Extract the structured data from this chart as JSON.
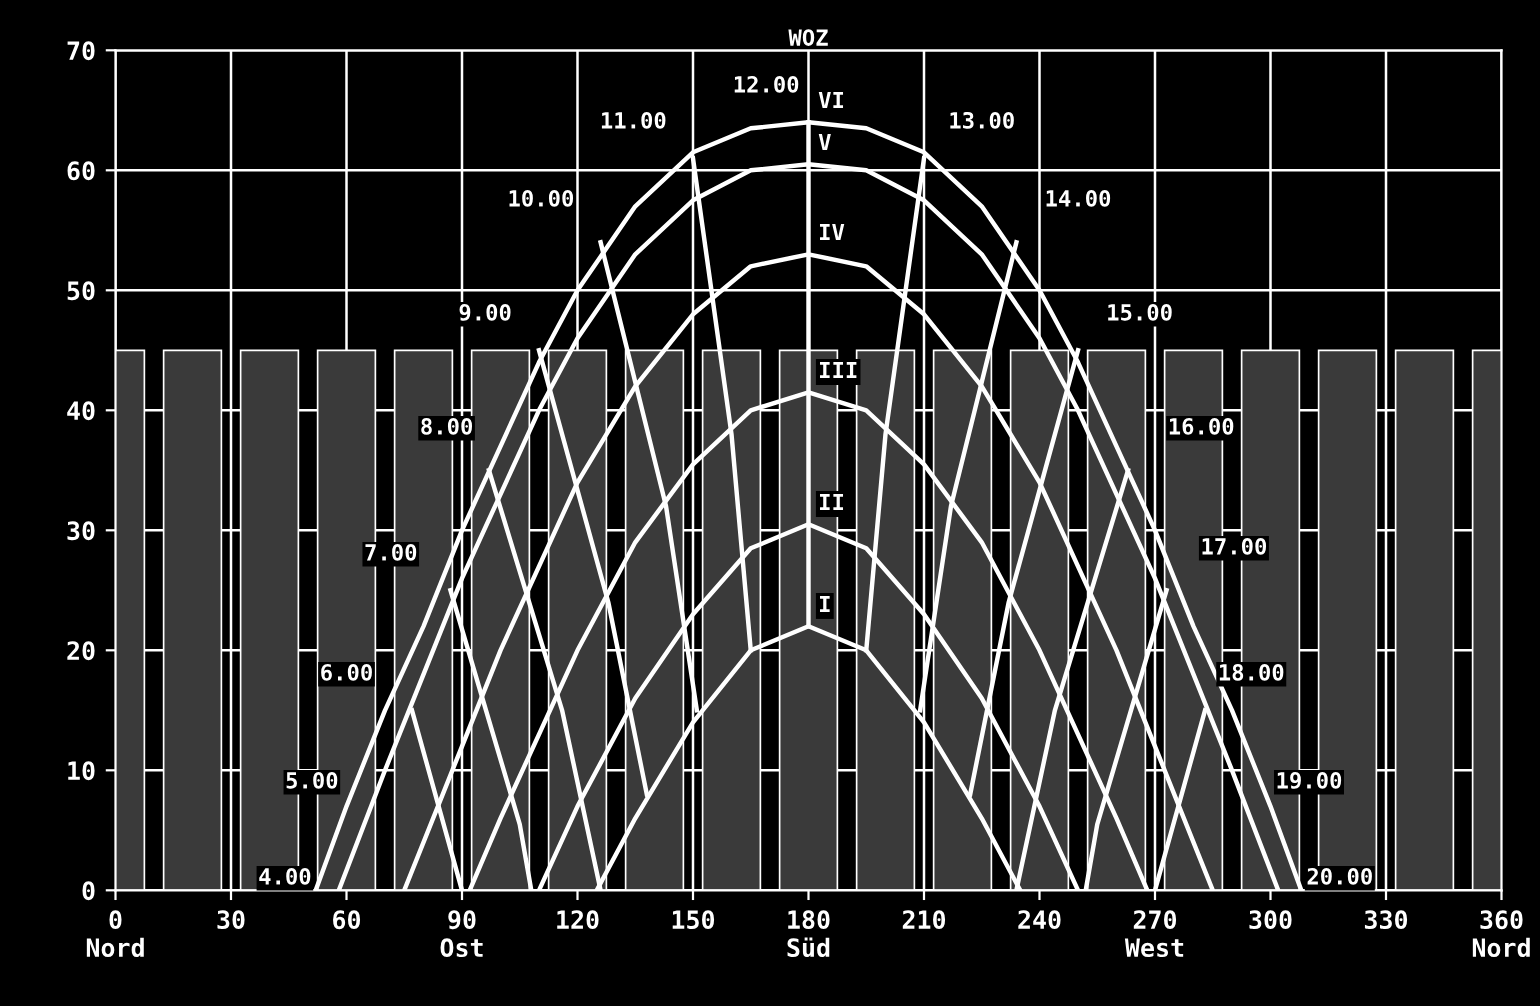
{
  "chart_data": {
    "type": "line",
    "title": "WOZ",
    "xlim": [
      0,
      360
    ],
    "ylim": [
      0,
      70
    ],
    "xticks": [
      {
        "value": 0,
        "label": "0\nNord"
      },
      30,
      60,
      {
        "value": 90,
        "label": "90\nOst"
      },
      120,
      150,
      {
        "value": 180,
        "label": "180\nSüd"
      },
      210,
      240,
      {
        "value": 270,
        "label": "270\nWest"
      },
      300,
      330,
      {
        "value": 360,
        "label": "360\nNord"
      }
    ],
    "yticks": [
      0,
      10,
      20,
      30,
      40,
      50,
      60,
      70
    ],
    "grid": true,
    "legend": false,
    "marker": "none",
    "line_style": "solid",
    "series": [
      {
        "type": "bar",
        "color": "#3a3a3a",
        "x": [
          0,
          20,
          40,
          60,
          80,
          100,
          120,
          140,
          160,
          180,
          200,
          220,
          240,
          260,
          280,
          300,
          320,
          340,
          360
        ],
        "values": [
          45,
          45,
          45,
          45,
          45,
          45,
          45,
          45,
          45,
          45,
          45,
          45,
          45,
          45,
          45,
          45,
          45,
          45,
          45
        ]
      },
      {
        "name": "I",
        "color": "#ffffff",
        "x": [
          125,
          135,
          150,
          165,
          180,
          195,
          210,
          225,
          235
        ],
        "values": [
          0,
          6,
          14,
          20,
          22,
          20,
          14,
          6,
          0
        ]
      },
      {
        "name": "II",
        "color": "#ffffff",
        "x": [
          110,
          120,
          135,
          150,
          165,
          180,
          195,
          210,
          225,
          240,
          250
        ],
        "values": [
          0,
          7,
          16,
          23,
          28.5,
          30.5,
          28.5,
          23,
          16,
          7,
          0
        ]
      },
      {
        "name": "III",
        "color": "#ffffff",
        "x": [
          92,
          100,
          110,
          120,
          135,
          150,
          165,
          180,
          195,
          210,
          225,
          240,
          250,
          260,
          268
        ],
        "values": [
          0,
          6,
          13,
          20,
          29,
          35.5,
          40,
          41.5,
          40,
          35.5,
          29,
          20,
          13,
          6,
          0
        ]
      },
      {
        "name": "IV",
        "color": "#ffffff",
        "x": [
          75,
          90,
          100,
          110,
          120,
          135,
          150,
          165,
          180,
          195,
          210,
          225,
          240,
          250,
          260,
          270,
          285
        ],
        "values": [
          0,
          12,
          20,
          27,
          34,
          42,
          48,
          52,
          53,
          52,
          48,
          42,
          34,
          27,
          20,
          12,
          0
        ]
      },
      {
        "name": "V",
        "color": "#ffffff",
        "x": [
          58,
          70,
          80,
          90,
          100,
          110,
          120,
          135,
          150,
          165,
          180,
          195,
          210,
          225,
          240,
          250,
          260,
          270,
          280,
          290,
          302
        ],
        "values": [
          0,
          10,
          18,
          26,
          33,
          40,
          46,
          53,
          57.5,
          60,
          60.5,
          60,
          57.5,
          53,
          46,
          40,
          33,
          26,
          18,
          10,
          0
        ]
      },
      {
        "name": "VI",
        "color": "#ffffff",
        "x": [
          52,
          60,
          70,
          80,
          90,
          100,
          110,
          120,
          135,
          150,
          165,
          180,
          195,
          210,
          225,
          240,
          250,
          260,
          270,
          280,
          290,
          300,
          308
        ],
        "values": [
          0,
          7,
          15,
          22,
          30,
          37,
          44,
          50,
          57,
          61.5,
          63.5,
          64,
          63.5,
          61.5,
          57,
          50,
          44,
          37,
          30,
          22,
          15,
          7,
          0
        ]
      },
      {
        "color": "#ffffff",
        "x": [
          180,
          180
        ],
        "values": [
          22,
          64
        ]
      },
      {
        "color": "#ffffff",
        "x": [
          165,
          160,
          150
        ],
        "values": [
          20,
          38,
          61
        ]
      },
      {
        "color": "#ffffff",
        "x": [
          151,
          143,
          126
        ],
        "values": [
          15,
          32,
          54
        ]
      },
      {
        "color": "#ffffff",
        "x": [
          138,
          128,
          110
        ],
        "values": [
          8,
          24,
          45
        ]
      },
      {
        "color": "#ffffff",
        "x": [
          126,
          116,
          97
        ],
        "values": [
          0,
          15,
          35
        ]
      },
      {
        "color": "#ffffff",
        "x": [
          108,
          105,
          87
        ],
        "values": [
          0,
          5.5,
          25
        ]
      },
      {
        "color": "#ffffff",
        "x": [
          90,
          77
        ],
        "values": [
          0,
          15
        ]
      },
      {
        "color": "#ffffff",
        "x": [
          195,
          200,
          210
        ],
        "values": [
          20,
          38,
          61
        ]
      },
      {
        "color": "#ffffff",
        "x": [
          209,
          217,
          234
        ],
        "values": [
          15,
          32,
          54
        ]
      },
      {
        "color": "#ffffff",
        "x": [
          222,
          232,
          250
        ],
        "values": [
          8,
          24,
          45
        ]
      },
      {
        "color": "#ffffff",
        "x": [
          234,
          244,
          263
        ],
        "values": [
          0,
          15,
          35
        ]
      },
      {
        "color": "#ffffff",
        "x": [
          252,
          255,
          273
        ],
        "values": [
          0,
          5.5,
          25
        ]
      },
      {
        "color": "#ffffff",
        "x": [
          270,
          283
        ],
        "values": [
          0,
          15
        ]
      }
    ],
    "annotations": [
      {
        "text": "4.00",
        "x": 44,
        "y": 1
      },
      {
        "text": "5.00",
        "x": 51,
        "y": 9
      },
      {
        "text": "6.00",
        "x": 60,
        "y": 18
      },
      {
        "text": "7.00",
        "x": 71.5,
        "y": 28
      },
      {
        "text": "8.00",
        "x": 86,
        "y": 38.5
      },
      {
        "text": "9.00",
        "x": 96,
        "y": 48
      },
      {
        "text": "10.00",
        "x": 110.5,
        "y": 57.5
      },
      {
        "text": "11.00",
        "x": 134.5,
        "y": 64
      },
      {
        "text": "12.00",
        "x": 169,
        "y": 67
      },
      {
        "text": "13.00",
        "x": 225,
        "y": 64
      },
      {
        "text": "14.00",
        "x": 250,
        "y": 57.5
      },
      {
        "text": "15.00",
        "x": 266,
        "y": 48
      },
      {
        "text": "16.00",
        "x": 282,
        "y": 38.5
      },
      {
        "text": "17.00",
        "x": 290.5,
        "y": 28.5
      },
      {
        "text": "18.00",
        "x": 295,
        "y": 18
      },
      {
        "text": "19.00",
        "x": 310,
        "y": 9
      },
      {
        "text": "20.00",
        "x": 318,
        "y": 1
      }
    ]
  }
}
